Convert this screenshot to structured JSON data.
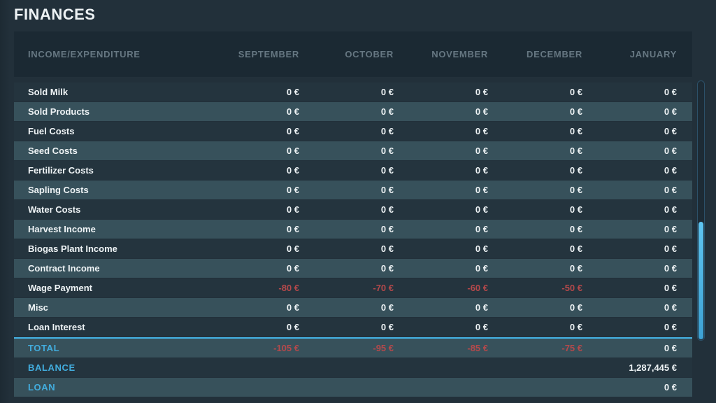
{
  "page": {
    "title": "FINANCES"
  },
  "table": {
    "header": {
      "label_col": "INCOME/EXPENDITURE",
      "months": [
        "SEPTEMBER",
        "OCTOBER",
        "NOVEMBER",
        "DECEMBER",
        "JANUARY"
      ]
    },
    "rows": [
      {
        "label": "Sold Milk",
        "values": [
          "0 €",
          "0 €",
          "0 €",
          "0 €",
          "0 €"
        ]
      },
      {
        "label": "Sold Products",
        "values": [
          "0 €",
          "0 €",
          "0 €",
          "0 €",
          "0 €"
        ]
      },
      {
        "label": "Fuel Costs",
        "values": [
          "0 €",
          "0 €",
          "0 €",
          "0 €",
          "0 €"
        ]
      },
      {
        "label": "Seed Costs",
        "values": [
          "0 €",
          "0 €",
          "0 €",
          "0 €",
          "0 €"
        ]
      },
      {
        "label": "Fertilizer Costs",
        "values": [
          "0 €",
          "0 €",
          "0 €",
          "0 €",
          "0 €"
        ]
      },
      {
        "label": "Sapling Costs",
        "values": [
          "0 €",
          "0 €",
          "0 €",
          "0 €",
          "0 €"
        ]
      },
      {
        "label": "Water Costs",
        "values": [
          "0 €",
          "0 €",
          "0 €",
          "0 €",
          "0 €"
        ]
      },
      {
        "label": "Harvest Income",
        "values": [
          "0 €",
          "0 €",
          "0 €",
          "0 €",
          "0 €"
        ]
      },
      {
        "label": "Biogas Plant Income",
        "values": [
          "0 €",
          "0 €",
          "0 €",
          "0 €",
          "0 €"
        ]
      },
      {
        "label": "Contract Income",
        "values": [
          "0 €",
          "0 €",
          "0 €",
          "0 €",
          "0 €"
        ]
      },
      {
        "label": "Wage Payment",
        "values": [
          "-80 €",
          "-70 €",
          "-60 €",
          "-50 €",
          "0 €"
        ]
      },
      {
        "label": "Misc",
        "values": [
          "0 €",
          "0 €",
          "0 €",
          "0 €",
          "0 €"
        ]
      },
      {
        "label": "Loan Interest",
        "values": [
          "0 €",
          "0 €",
          "0 €",
          "0 €",
          "0 €"
        ]
      }
    ],
    "total_row": {
      "label": "TOTAL",
      "values": [
        "-105 €",
        "-95 €",
        "-85 €",
        "-75 €",
        "0 €"
      ]
    },
    "balance_row": {
      "label": "BALANCE",
      "values": [
        "",
        "",
        "",
        "",
        "1,287,445 €"
      ]
    },
    "loan_row": {
      "label": "LOAN",
      "values": [
        "",
        "",
        "",
        "",
        "0 €"
      ]
    }
  },
  "scrollbar": {
    "thumb_position": "bottom"
  },
  "colors": {
    "accent_cyan": "#42adde",
    "negative_red": "#b5494b",
    "row_dark": "#24343e",
    "row_light": "#37515b",
    "header_panel": "#1b2933",
    "page_background": "#22303a",
    "header_text": "#667782",
    "value_text": "#eef3f5",
    "total_divider": "#45b4e6"
  }
}
